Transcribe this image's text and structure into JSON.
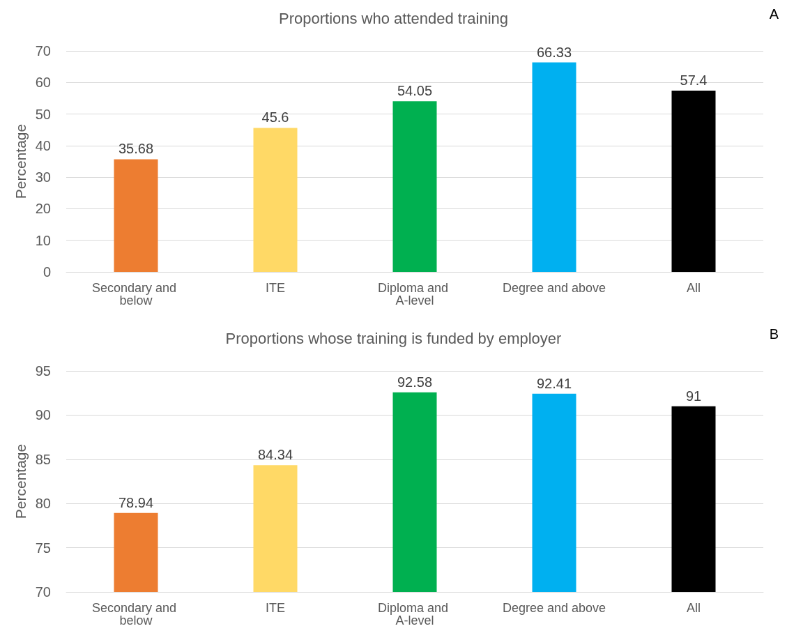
{
  "chart_data": [
    {
      "type": "bar",
      "title": "Proportions who attended training",
      "ylabel": "Percentage",
      "categories": [
        "Secondary and below",
        "ITE",
        "Diploma and A-level",
        "Degree and above",
        "All"
      ],
      "values": [
        35.68,
        45.6,
        54.05,
        66.33,
        57.4
      ],
      "colors": [
        "#ed7d31",
        "#ffd966",
        "#00b050",
        "#00b0f0",
        "#000000"
      ],
      "ylim": [
        0,
        70
      ],
      "yticks": [
        0,
        10,
        20,
        30,
        40,
        50,
        60,
        70
      ],
      "grid": "y",
      "data_labels": true,
      "annotations": [
        "A"
      ]
    },
    {
      "type": "bar",
      "title": "Proportions whose training is funded by employer",
      "ylabel": "Percentage",
      "categories": [
        "Secondary and below",
        "ITE",
        "Diploma and A-level",
        "Degree and above",
        "All"
      ],
      "values": [
        78.94,
        84.34,
        92.58,
        92.41,
        91
      ],
      "colors": [
        "#ed7d31",
        "#ffd966",
        "#00b050",
        "#00b0f0",
        "#000000"
      ],
      "ylim": [
        70,
        95
      ],
      "yticks": [
        70,
        75,
        80,
        85,
        90,
        95
      ],
      "grid": "y",
      "data_labels": true,
      "annotations": [
        "B"
      ]
    }
  ]
}
